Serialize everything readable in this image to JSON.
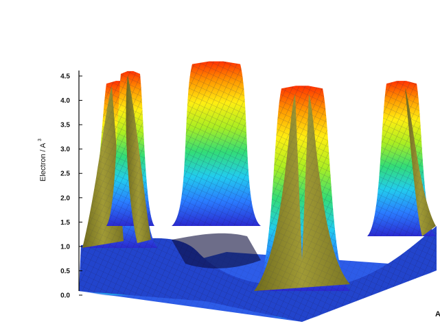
{
  "chart_data": {
    "type": "surface3d",
    "zlabel": "Electron / A",
    "zlabel_superscript": "3",
    "z_ticks": [
      "0.0",
      "0.5",
      "1.0",
      "1.5",
      "2.0",
      "2.5",
      "3.0",
      "3.5",
      "4.0",
      "4.5"
    ],
    "z_tick_values": [
      0.0,
      0.5,
      1.0,
      1.5,
      2.0,
      2.5,
      3.0,
      3.5,
      4.0,
      4.5
    ],
    "zlim": [
      0.0,
      4.5
    ],
    "peak_heights": [
      4.4,
      4.8,
      4.3,
      4.4,
      4.6
    ],
    "base_level": 0.2,
    "colormap": [
      "#2a2ad0",
      "#2a7bff",
      "#22ccee",
      "#33dd77",
      "#aaee22",
      "#ffee11",
      "#ff9900",
      "#ff3300"
    ],
    "underside_color": "#8f8a2c",
    "contour_projection": true,
    "clipped_axis_label": "A"
  }
}
